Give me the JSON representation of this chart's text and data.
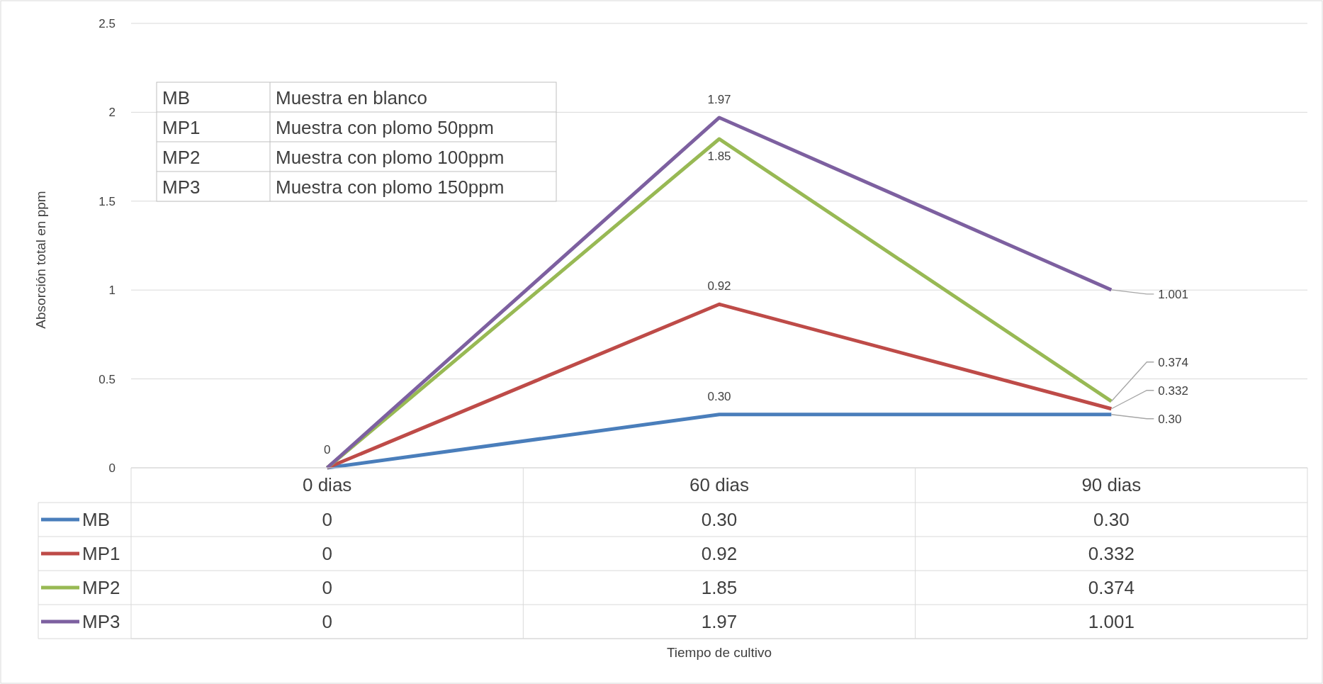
{
  "chart_data": {
    "type": "line",
    "ylabel": "Absorción total en ppm",
    "categories": [
      "0 dias",
      "60 dias",
      "90 dias"
    ],
    "series": [
      {
        "name": "MB",
        "color": "#4a7ebb",
        "values": [
          0,
          0.3,
          0.3
        ],
        "value_labels": [
          "0",
          "0.30",
          "0.30"
        ]
      },
      {
        "name": "MP1",
        "color": "#be4b48",
        "values": [
          0,
          0.92,
          0.332
        ],
        "value_labels": [
          "0",
          "0.92",
          "0.332"
        ]
      },
      {
        "name": "MP2",
        "color": "#98b954",
        "values": [
          0,
          1.85,
          0.374
        ],
        "value_labels": [
          "0",
          "1.85",
          "0.374"
        ]
      },
      {
        "name": "MP3",
        "color": "#7d60a0",
        "values": [
          0,
          1.97,
          1.001
        ],
        "value_labels": [
          "0",
          "1.97",
          "1.001"
        ]
      }
    ],
    "ylim": [
      0,
      2.5
    ],
    "yticks": [
      0,
      0.5,
      1,
      1.5,
      2,
      2.5
    ],
    "grid": "y",
    "legend": "bottom",
    "marker": "none",
    "line_style": "solid",
    "annotations": [
      "MB",
      "Muestra en blanco",
      "MP1",
      "Muestra con plomo 50ppm",
      "MP2",
      "Muestra con plomo 100ppm",
      "MP3",
      "Muestra con plomo 150ppm",
      "Tiempo de cultivo"
    ]
  }
}
